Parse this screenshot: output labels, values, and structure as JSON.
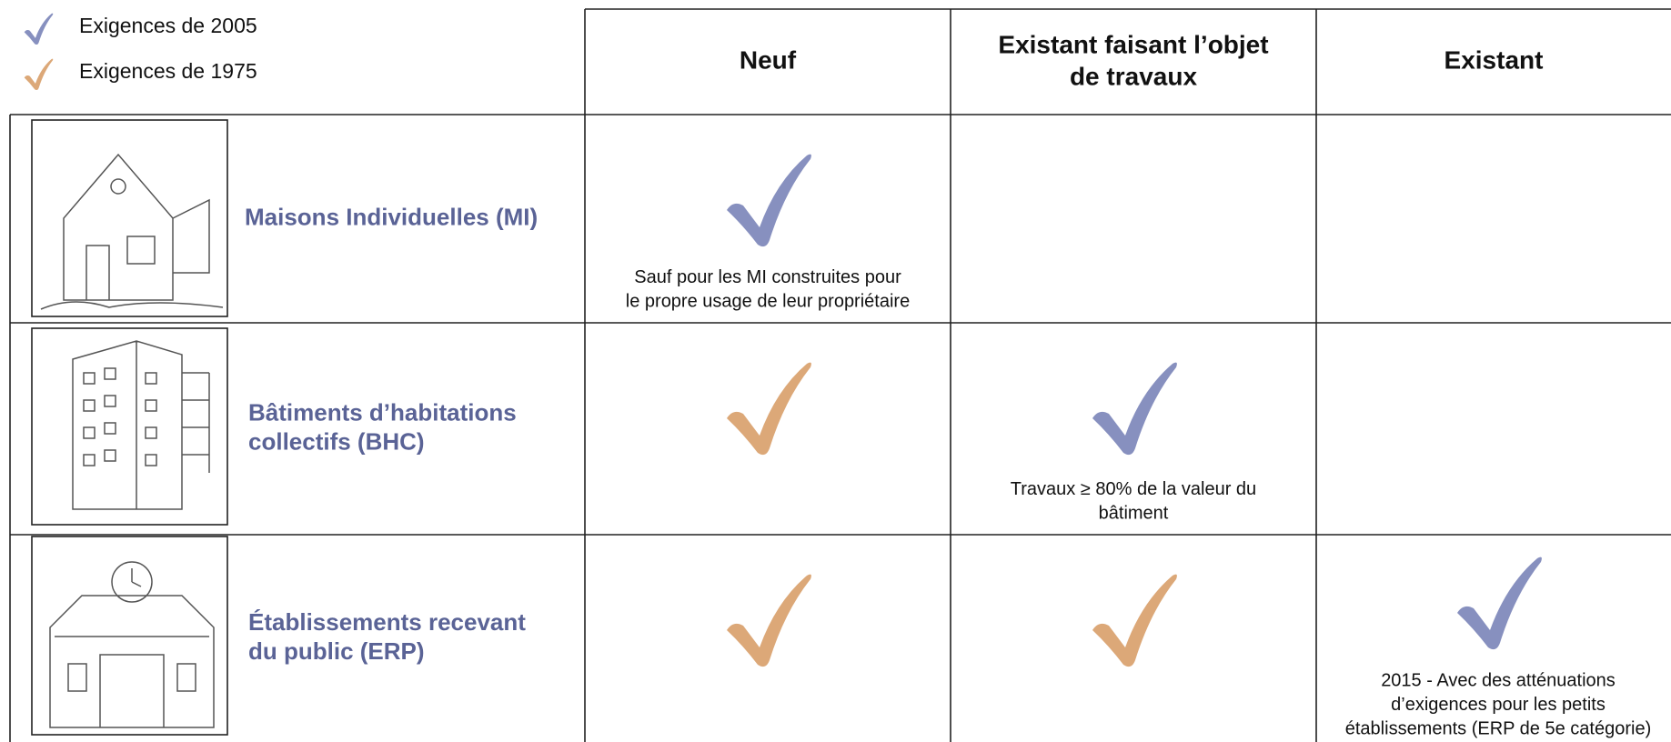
{
  "legend": [
    {
      "label": "Exigences de 2005",
      "color": "#8790bf"
    },
    {
      "label": "Exigences de 1975",
      "color": "#dca878"
    }
  ],
  "table": {
    "columns": [
      "Neuf",
      [
        "Existant faisant l’objet",
        "de travaux"
      ],
      "Existant"
    ],
    "rows": [
      {
        "label": [
          "Maisons Individuelles (MI)"
        ],
        "cells": [
          {
            "check": "#8790bf",
            "note": [
              "Sauf pour les MI construites pour",
              "le propre usage de leur propriétaire"
            ]
          },
          {},
          {}
        ]
      },
      {
        "label": [
          "Bâtiments d’habitations",
          "collectifs (BHC)"
        ],
        "cells": [
          {
            "check": "#dca878"
          },
          {
            "check": "#8790bf",
            "note": [
              "Travaux ≥ 80% de la valeur du",
              "bâtiment"
            ]
          },
          {}
        ]
      },
      {
        "label": [
          "Établissements recevant",
          "du public (ERP)"
        ],
        "cells": [
          {
            "check": "#dca878"
          },
          {
            "check": "#dca878"
          },
          {
            "check": "#8790bf",
            "note": [
              "2015 - Avec des atténuations",
              "d’exigences pour les petits",
              "établissements (ERP de 5e catégorie)"
            ]
          }
        ]
      }
    ]
  }
}
